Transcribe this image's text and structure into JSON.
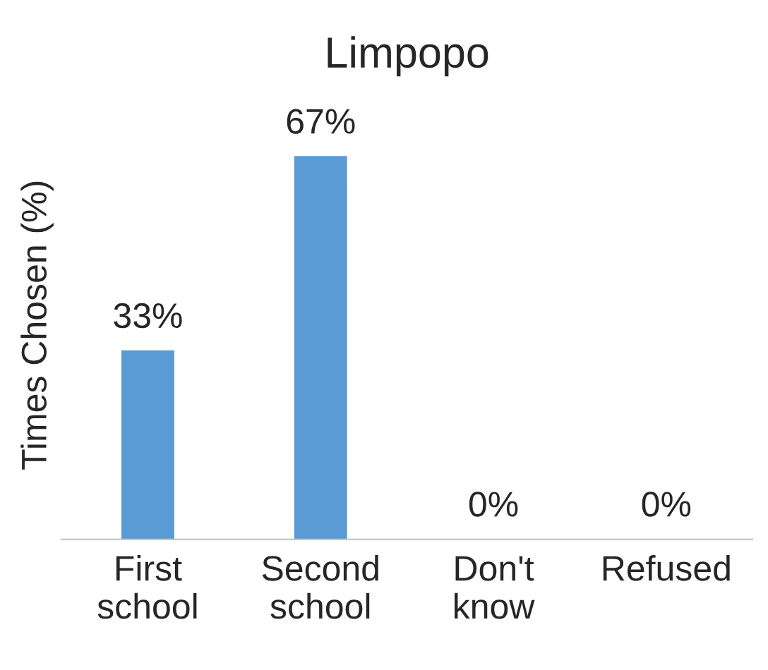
{
  "chart_data": {
    "type": "bar",
    "title": "Limpopo",
    "ylabel": "Times Chosen (%)",
    "categories": [
      "First\nschool",
      "Second\nschool",
      "Don't\nknow",
      "Refused"
    ],
    "values": [
      33,
      67,
      0,
      0
    ],
    "color": "#5b9bd5",
    "value_labels": [
      "33%",
      "67%",
      "0%",
      "0%"
    ],
    "tick_labels": "x",
    "grid": false,
    "legend": false
  }
}
